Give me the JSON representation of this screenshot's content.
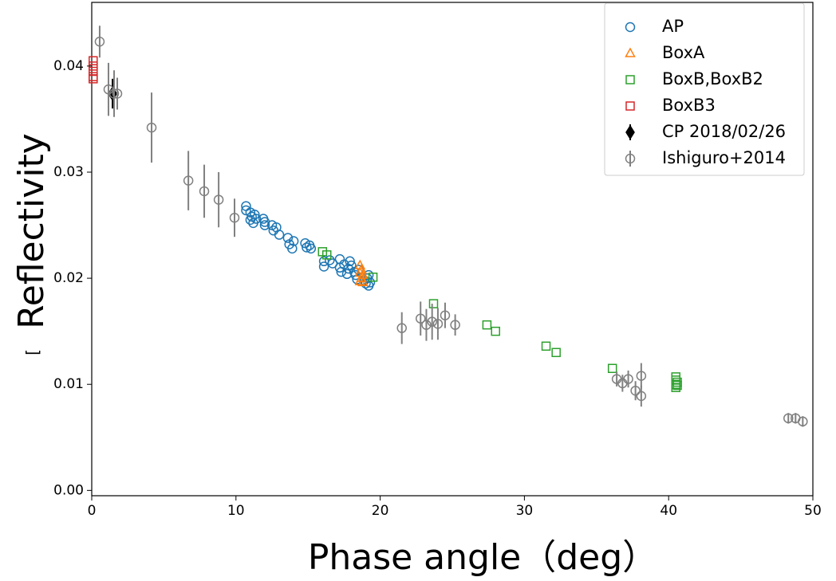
{
  "chart_data": {
    "type": "scatter",
    "x_label": "Phase angle（deg）",
    "y_label": "Reflectivity",
    "annotations": [
      "["
    ],
    "xlim": [
      0,
      50
    ],
    "xticks": [
      0,
      10,
      20,
      30,
      40,
      50
    ],
    "ylim": [
      -0.0005,
      0.046
    ],
    "yticks": [
      {
        "value": 0,
        "label": "0.00"
      },
      0.01,
      0.02,
      0.03,
      0.04
    ],
    "legend": "upper right",
    "series": [
      {
        "name": "AP",
        "color": "#1f77b4",
        "marker": "circle",
        "x": [
          10.7,
          10.7,
          11.0,
          11.0,
          11.1,
          11.2,
          11.3,
          11.4,
          11.9,
          12.0,
          12.0,
          12.5,
          12.6,
          12.8,
          13.0,
          13.6,
          13.7,
          13.9,
          14.0,
          14.8,
          14.9,
          15.1,
          15.2,
          16.1,
          16.1,
          16.5,
          16.7,
          17.2,
          17.2,
          17.3,
          17.5,
          17.7,
          17.8,
          17.9,
          18.0,
          18.2,
          18.3,
          18.4,
          18.5,
          18.9,
          19.0,
          19.1,
          19.2,
          19.3,
          19.2
        ],
        "values": [
          0.0268,
          0.0264,
          0.0262,
          0.0255,
          0.0258,
          0.0252,
          0.026,
          0.0256,
          0.0256,
          0.025,
          0.0253,
          0.025,
          0.0245,
          0.0248,
          0.0241,
          0.0238,
          0.0232,
          0.0228,
          0.0235,
          0.0233,
          0.0229,
          0.0231,
          0.0228,
          0.0216,
          0.0211,
          0.0217,
          0.0214,
          0.0218,
          0.021,
          0.0206,
          0.0213,
          0.0204,
          0.0209,
          0.0216,
          0.0212,
          0.0206,
          0.0203,
          0.0199,
          0.0208,
          0.0198,
          0.0195,
          0.02,
          0.0193,
          0.0196,
          0.0203
        ]
      },
      {
        "name": "BoxA",
        "color": "#ff7f0e",
        "marker": "triangle",
        "x": [
          18.6,
          18.6,
          18.7,
          18.7,
          18.8,
          18.6,
          18.8
        ],
        "values": [
          0.0212,
          0.0205,
          0.0208,
          0.02,
          0.0203,
          0.0197,
          0.0196
        ]
      },
      {
        "name": "BoxB,BoxB2",
        "color": "#2ca02c",
        "marker": "square",
        "x": [
          16.0,
          16.3,
          19.5,
          23.7,
          27.4,
          28.0,
          31.5,
          32.2,
          36.1,
          40.5,
          40.5,
          40.6,
          40.5,
          40.6,
          40.5
        ],
        "values": [
          0.0225,
          0.0222,
          0.0201,
          0.0176,
          0.0156,
          0.015,
          0.0136,
          0.013,
          0.0115,
          0.0107,
          0.0104,
          0.0102,
          0.01,
          0.0099,
          0.0097
        ]
      },
      {
        "name": "BoxB3",
        "color": "#d62728",
        "marker": "square",
        "x": [
          0.1,
          0.1,
          0.1,
          0.1,
          0.1
        ],
        "values": [
          0.0405,
          0.04,
          0.0395,
          0.039,
          0.0388
        ]
      },
      {
        "name": "CP 2018/02/26",
        "color": "#000000",
        "marker": "diamond",
        "x": [
          1.44
        ],
        "values": [
          0.0374
        ],
        "errors": [
          0.0014
        ]
      },
      {
        "name": "Ishiguro+2014",
        "color": "#808080",
        "marker": "circle",
        "x": [
          0.55,
          1.16,
          1.55,
          1.77,
          4.15,
          6.7,
          7.8,
          8.8,
          9.9,
          21.5,
          22.8,
          23.2,
          23.6,
          24.0,
          24.5,
          25.2,
          36.4,
          36.8,
          37.2,
          37.7,
          38.1,
          38.1,
          48.3,
          48.8,
          49.3
        ],
        "values": [
          0.0423,
          0.0378,
          0.0374,
          0.0374,
          0.0342,
          0.0292,
          0.0282,
          0.0274,
          0.0257,
          0.0153,
          0.0162,
          0.0156,
          0.0159,
          0.0157,
          0.0165,
          0.0156,
          0.0105,
          0.0101,
          0.0105,
          0.0094,
          0.0108,
          0.0089,
          0.0068,
          0.0068,
          0.0065
        ],
        "errors": [
          0.0015,
          0.0025,
          0.0022,
          0.0015,
          0.0033,
          0.0028,
          0.0025,
          0.0026,
          0.0018,
          0.0015,
          0.0016,
          0.0015,
          0.0017,
          0.0015,
          0.0012,
          0.001,
          0.0007,
          0.0008,
          0.0008,
          0.0009,
          0.0012,
          0.001,
          0.0005,
          0.0005,
          0.0005
        ]
      }
    ]
  }
}
